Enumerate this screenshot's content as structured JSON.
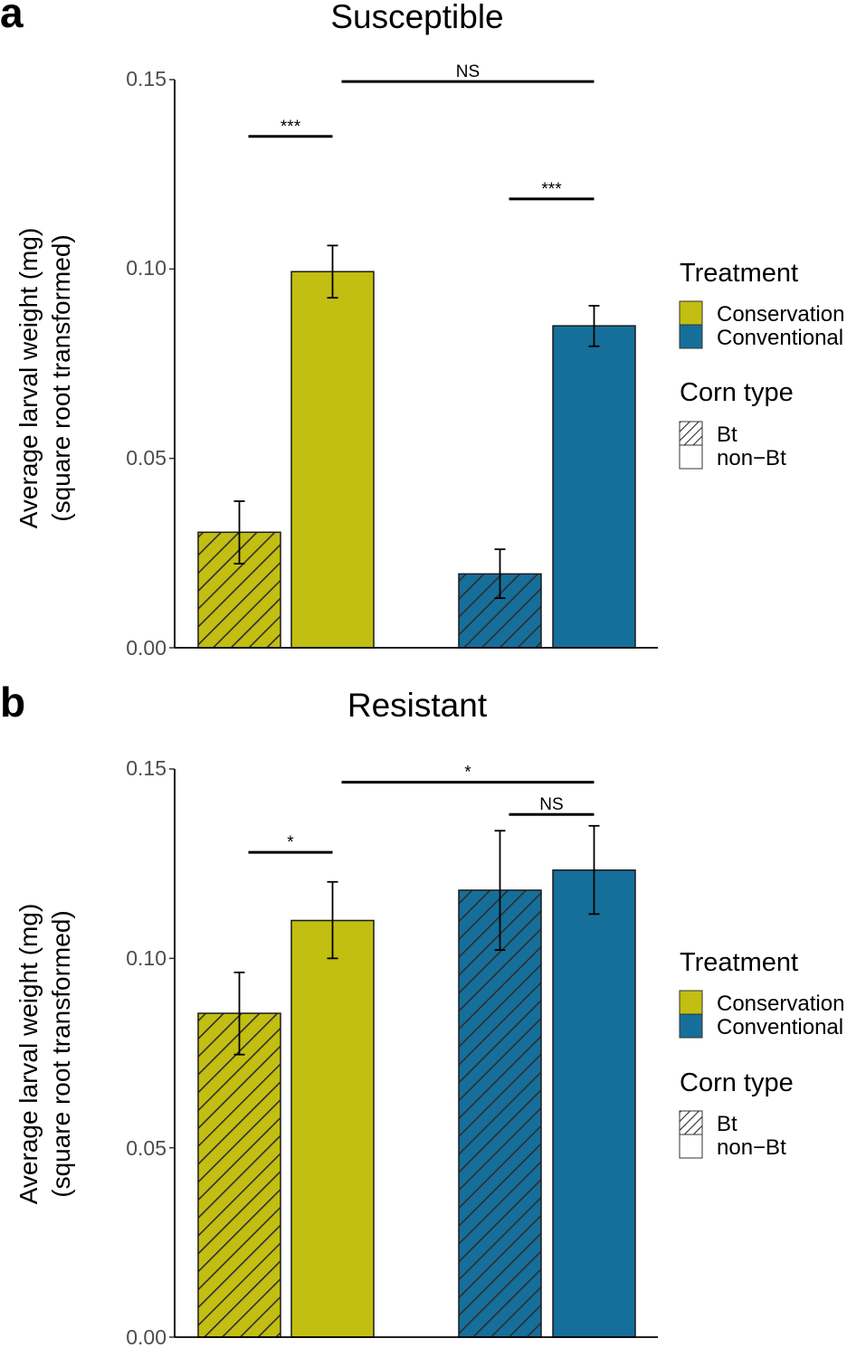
{
  "colors": {
    "Conservation": "#c2be12",
    "Conventional": "#156f9a",
    "hatch": "#2d2d2d",
    "axis": "#000000",
    "tick_text": "#4d4d4d"
  },
  "legend": {
    "treatment_title": "Treatment",
    "treatment_items": [
      "Conservation",
      "Conventional"
    ],
    "corn_title": "Corn type",
    "corn_items": [
      "Bt",
      "non−Bt"
    ]
  },
  "chart_data": [
    {
      "type": "bar",
      "panel_letter": "a",
      "title": "Susceptible",
      "ylabel_line1": "Average larval weight (mg)",
      "ylabel_line2": "(square root transformed)",
      "ylim": [
        0,
        0.15
      ],
      "yticks": [
        "0.00",
        "0.05",
        "0.10",
        "0.15"
      ],
      "grid": false,
      "legend_position": "right",
      "bars": [
        {
          "treatment": "Conservation",
          "corn": "Bt",
          "value": 0.0305,
          "err_low": 0.0222,
          "err_high": 0.0387
        },
        {
          "treatment": "Conservation",
          "corn": "non-Bt",
          "value": 0.0993,
          "err_low": 0.0924,
          "err_high": 0.1062
        },
        {
          "treatment": "Conventional",
          "corn": "Bt",
          "value": 0.0195,
          "err_low": 0.0131,
          "err_high": 0.026
        },
        {
          "treatment": "Conventional",
          "corn": "non-Bt",
          "value": 0.085,
          "err_low": 0.0796,
          "err_high": 0.0903
        }
      ],
      "comparisons": [
        {
          "from_bar": 0,
          "to_bar": 1,
          "y": 0.135,
          "label": "***"
        },
        {
          "from_bar": 2,
          "to_bar": 3,
          "y": 0.1185,
          "label": "***"
        },
        {
          "from_bar": 1,
          "to_bar": 3,
          "y": 0.1495,
          "label": "NS"
        }
      ]
    },
    {
      "type": "bar",
      "panel_letter": "b",
      "title": "Resistant",
      "ylabel_line1": "Average larval weight (mg)",
      "ylabel_line2": "(square root transformed)",
      "ylim": [
        0,
        0.15
      ],
      "yticks": [
        "0.00",
        "0.05",
        "0.10",
        "0.15"
      ],
      "grid": false,
      "legend_position": "right",
      "bars": [
        {
          "treatment": "Conservation",
          "corn": "Bt",
          "value": 0.0855,
          "err_low": 0.0746,
          "err_high": 0.0963
        },
        {
          "treatment": "Conservation",
          "corn": "non-Bt",
          "value": 0.11,
          "err_low": 0.1,
          "err_high": 0.1202
        },
        {
          "treatment": "Conventional",
          "corn": "Bt",
          "value": 0.118,
          "err_low": 0.1022,
          "err_high": 0.1337
        },
        {
          "treatment": "Conventional",
          "corn": "non-Bt",
          "value": 0.1233,
          "err_low": 0.1117,
          "err_high": 0.135
        }
      ],
      "comparisons": [
        {
          "from_bar": 0,
          "to_bar": 1,
          "y": 0.128,
          "label": "*"
        },
        {
          "from_bar": 2,
          "to_bar": 3,
          "y": 0.138,
          "label": "NS"
        },
        {
          "from_bar": 1,
          "to_bar": 3,
          "y": 0.1465,
          "label": "*"
        }
      ]
    }
  ]
}
